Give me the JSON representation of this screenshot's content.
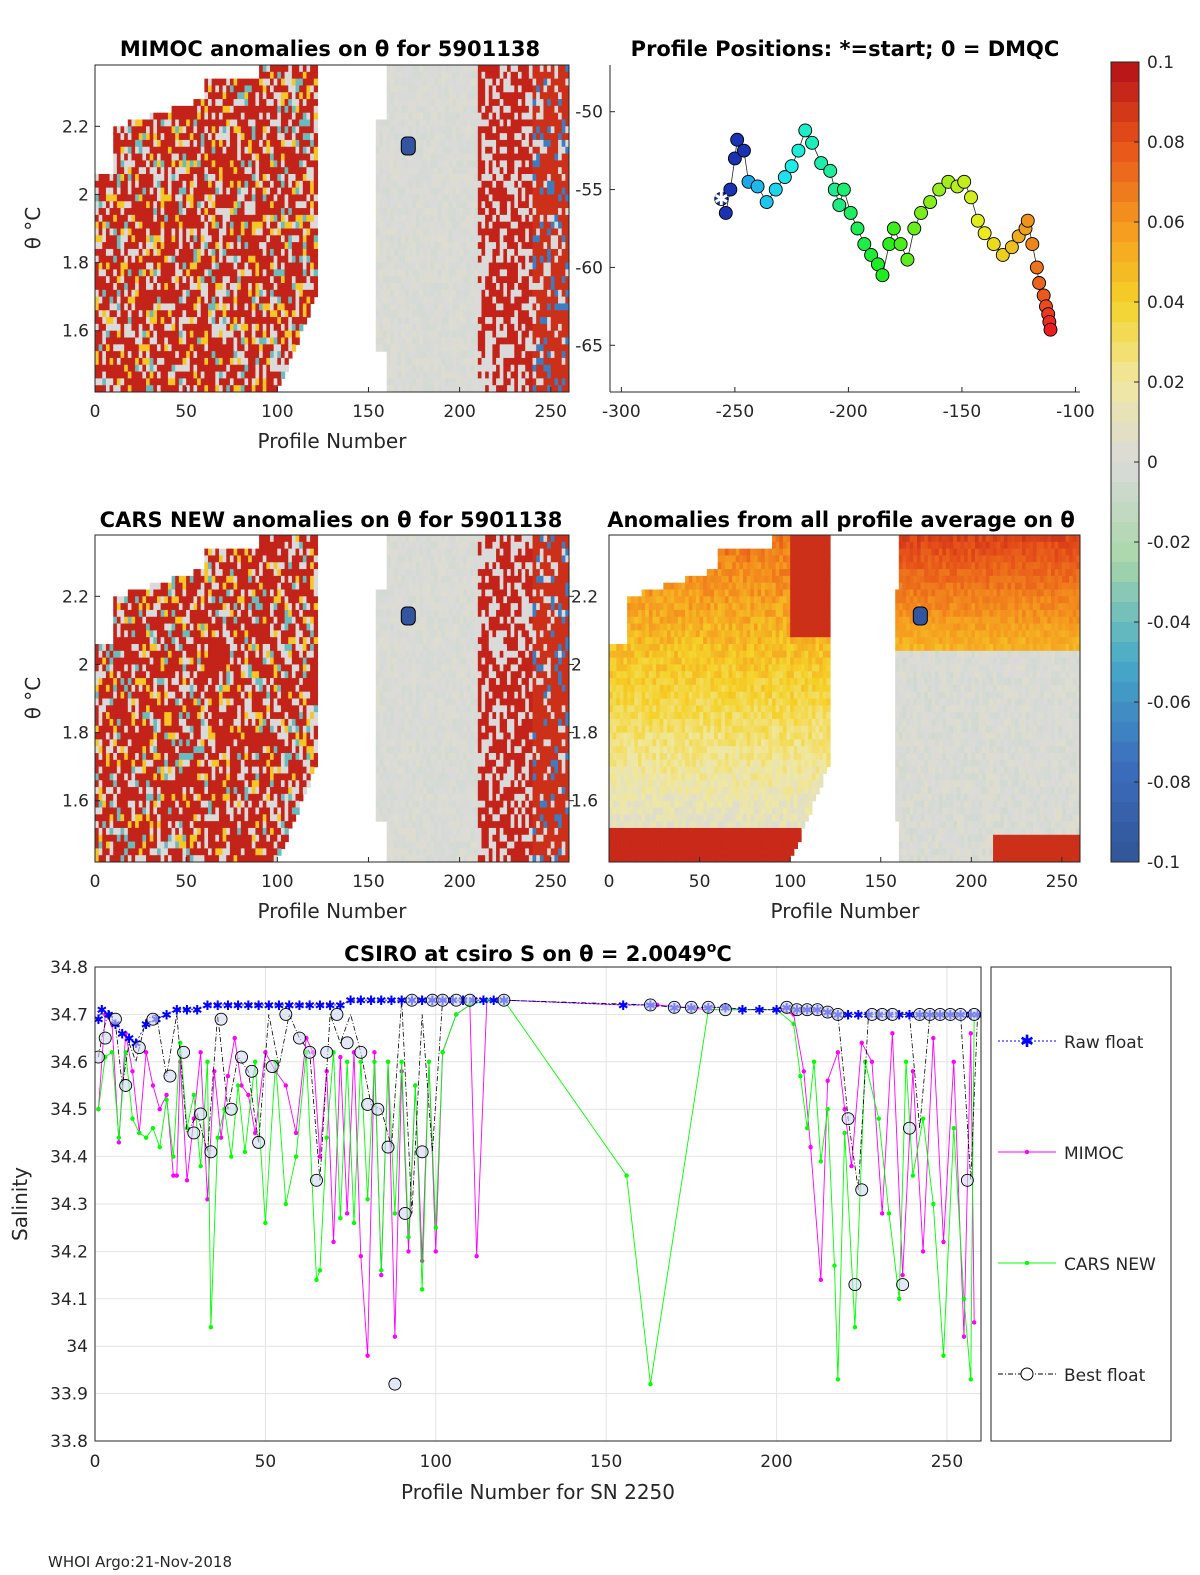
{
  "chart_data": [
    {
      "type": "heatmap",
      "id": "mimoc",
      "title": "MIMOC anomalies on θ  for 5901138",
      "xlabel": "Profile Number",
      "ylabel": "θ °C",
      "xlim": [
        0,
        260
      ],
      "ylim": [
        1.42,
        2.38
      ],
      "xticks": [
        "0",
        "50",
        "100",
        "150",
        "200",
        "250"
      ],
      "yticks": [
        "1.6",
        "1.8",
        "2",
        "2.2"
      ]
    },
    {
      "type": "scatter",
      "id": "positions",
      "title": "Profile Positions: *=start; 0 = DMQC",
      "xlim": [
        -305,
        -98
      ],
      "ylim": [
        -68,
        -47
      ],
      "xticks": [
        "-300",
        "-250",
        "-200",
        "-150",
        "-100"
      ],
      "yticks": [
        "-50",
        "-55",
        "-60",
        "-65"
      ],
      "track": [
        [
          -256,
          -55.6
        ],
        [
          -254,
          -56.5
        ],
        [
          -252,
          -55
        ],
        [
          -250,
          -53
        ],
        [
          -249,
          -51.8
        ],
        [
          -246,
          -52.5
        ],
        [
          -244,
          -54.5
        ],
        [
          -240,
          -54.8
        ],
        [
          -236,
          -55.8
        ],
        [
          -232,
          -55
        ],
        [
          -228,
          -54.2
        ],
        [
          -225,
          -53.5
        ],
        [
          -222,
          -52.5
        ],
        [
          -219,
          -51.2
        ],
        [
          -216,
          -52
        ],
        [
          -212,
          -53.3
        ],
        [
          -208,
          -53.8
        ],
        [
          -206,
          -55
        ],
        [
          -204,
          -56
        ],
        [
          -202,
          -55
        ],
        [
          -199,
          -56.5
        ],
        [
          -196,
          -57.5
        ],
        [
          -193,
          -58.5
        ],
        [
          -190,
          -59.2
        ],
        [
          -187,
          -59.8
        ],
        [
          -185,
          -60.5
        ],
        [
          -182,
          -58.5
        ],
        [
          -180,
          -57.5
        ],
        [
          -177,
          -58.5
        ],
        [
          -174,
          -59.5
        ],
        [
          -171,
          -57.5
        ],
        [
          -168,
          -56.5
        ],
        [
          -164,
          -55.8
        ],
        [
          -160,
          -55
        ],
        [
          -156,
          -54.5
        ],
        [
          -152,
          -54.8
        ],
        [
          -149,
          -54.5
        ],
        [
          -146,
          -55.5
        ],
        [
          -143,
          -57
        ],
        [
          -140,
          -57.8
        ],
        [
          -136,
          -58.5
        ],
        [
          -132,
          -59.2
        ],
        [
          -128,
          -58.7
        ],
        [
          -125,
          -58
        ],
        [
          -122,
          -57.5
        ],
        [
          -121,
          -57
        ],
        [
          -119,
          -58.5
        ],
        [
          -117,
          -60
        ],
        [
          -116,
          -61
        ],
        [
          -114,
          -61.8
        ],
        [
          -113,
          -62.5
        ],
        [
          -112,
          -63
        ],
        [
          -111.5,
          -63.5
        ],
        [
          -111,
          -64
        ]
      ],
      "start": [
        -256,
        -55.6
      ]
    },
    {
      "type": "colorbar",
      "id": "colorbar",
      "range": [
        -0.1,
        0.1
      ],
      "ticks": [
        "0.1",
        "0.08",
        "0.06",
        "0.04",
        "0.02",
        "0",
        "-0.02",
        "-0.04",
        "-0.06",
        "-0.08",
        "-0.1"
      ]
    },
    {
      "type": "heatmap",
      "id": "cars",
      "title": "CARS NEW anomalies on θ for 5901138",
      "xlabel": "Profile Number",
      "ylabel": "θ °C",
      "xlim": [
        0,
        260
      ],
      "ylim": [
        1.42,
        2.38
      ],
      "xticks": [
        "0",
        "50",
        "100",
        "150",
        "200",
        "250"
      ],
      "yticks": [
        "1.6",
        "1.8",
        "2",
        "2.2"
      ]
    },
    {
      "type": "heatmap",
      "id": "avg",
      "title": "Anomalies from all profile average on θ",
      "xlabel": "Profile Number",
      "ylabel": "",
      "xlim": [
        0,
        260
      ],
      "ylim": [
        1.42,
        2.38
      ],
      "xticks": [
        "0",
        "50",
        "100",
        "150",
        "200",
        "250"
      ],
      "yticks": [
        "1.6",
        "1.8",
        "2",
        "2.2"
      ]
    },
    {
      "type": "line",
      "id": "salinity",
      "title": "CSIRO at csiro S on θ = 2.0049",
      "title_sup": "o",
      "title_end": "C",
      "xlabel": "Profile Number for SN 2250",
      "ylabel": "Salinity",
      "xlim": [
        0,
        260
      ],
      "ylim": [
        33.8,
        34.8
      ],
      "xticks": [
        "0",
        "50",
        "100",
        "150",
        "200",
        "250"
      ],
      "yticks": [
        "33.8",
        "33.9",
        "34",
        "34.1",
        "34.2",
        "34.3",
        "34.4",
        "34.5",
        "34.6",
        "34.7",
        "34.8"
      ],
      "legend": [
        "Raw float",
        "MIMOC",
        "CARS NEW",
        "Best float"
      ],
      "series": [
        {
          "name": "MIMOC",
          "color": "#ff00ff",
          "x": [
            1,
            3,
            5,
            7,
            9,
            11,
            13,
            15,
            17,
            19,
            21,
            23,
            24,
            25,
            27,
            29,
            31,
            33,
            35,
            37,
            39,
            41,
            43,
            45,
            47,
            50,
            53,
            56,
            59,
            62,
            64,
            66,
            68,
            70,
            72,
            74,
            76,
            78,
            80,
            82,
            84,
            86,
            88,
            90,
            92,
            94,
            96,
            98,
            100,
            102,
            106,
            110,
            112,
            115,
            120,
            155,
            165,
            180,
            200,
            205,
            208,
            210,
            213,
            215,
            218,
            220,
            222,
            225,
            228,
            231,
            234,
            237,
            240,
            243,
            246,
            249,
            252,
            255,
            257,
            258
          ],
          "y": [
            34.5,
            34.7,
            34.68,
            34.43,
            34.66,
            34.58,
            34.45,
            34.62,
            34.55,
            34.5,
            34.53,
            34.36,
            34.36,
            34.6,
            34.35,
            34.48,
            34.62,
            34.31,
            34.58,
            34.44,
            34.57,
            34.65,
            34.55,
            34.53,
            34.45,
            34.62,
            34.58,
            34.55,
            34.45,
            34.65,
            34.62,
            34.4,
            34.58,
            34.22,
            34.61,
            34.28,
            34.62,
            34.19,
            33.98,
            34.62,
            34.15,
            34.6,
            34.02,
            34.58,
            34.2,
            34.55,
            34.18,
            34.6,
            34.2,
            34.62,
            34.7,
            34.72,
            34.19,
            34.73,
            34.73,
            34.72,
            34.72,
            34.71,
            34.71,
            34.7,
            34.58,
            34.42,
            34.14,
            34.56,
            34.62,
            34.5,
            34.38,
            34.64,
            34.6,
            34.28,
            34.66,
            34.15,
            34.58,
            34.2,
            34.65,
            34.22,
            34.6,
            34.02,
            34.66,
            34.05
          ]
        },
        {
          "name": "CARS NEW",
          "color": "#00ff00",
          "x": [
            1,
            3,
            5,
            7,
            9,
            11,
            13,
            15,
            17,
            19,
            21,
            23,
            25,
            27,
            29,
            31,
            33,
            34,
            36,
            38,
            40,
            42,
            44,
            47,
            50,
            53,
            56,
            59,
            62,
            65,
            66,
            68,
            70,
            72,
            74,
            76,
            78,
            80,
            82,
            84,
            86,
            88,
            90,
            92,
            94,
            96,
            98,
            100,
            102,
            106,
            110,
            115,
            120,
            156,
            163,
            180,
            200,
            205,
            207,
            209,
            211,
            213,
            215,
            217,
            218,
            220,
            223,
            226,
            230,
            233,
            236,
            238,
            240,
            243,
            246,
            249,
            252,
            255,
            257,
            258
          ],
          "y": [
            34.5,
            34.61,
            34.62,
            34.44,
            34.62,
            34.48,
            34.45,
            34.44,
            34.46,
            34.42,
            34.52,
            34.4,
            34.64,
            34.46,
            34.53,
            34.38,
            34.6,
            34.04,
            34.44,
            34.5,
            34.4,
            34.55,
            34.41,
            34.6,
            34.26,
            34.6,
            34.3,
            34.4,
            34.62,
            34.14,
            34.16,
            34.44,
            34.62,
            34.27,
            34.6,
            34.26,
            34.6,
            34.31,
            34.6,
            34.16,
            34.6,
            34.28,
            34.6,
            34.23,
            34.55,
            34.12,
            34.6,
            34.25,
            34.62,
            34.7,
            34.72,
            34.73,
            34.73,
            34.36,
            33.92,
            34.71,
            34.71,
            34.68,
            34.57,
            34.46,
            34.6,
            34.39,
            34.5,
            34.17,
            33.93,
            34.45,
            34.04,
            34.6,
            34.48,
            34.28,
            34.1,
            34.6,
            34.36,
            34.48,
            34.3,
            33.98,
            34.46,
            34.1,
            33.93,
            34.7
          ]
        },
        {
          "name": "Raw float",
          "color": "#0000ff",
          "x": [
            1,
            2,
            4,
            6,
            8,
            10,
            12,
            15,
            18,
            21,
            24,
            27,
            30,
            33,
            36,
            39,
            42,
            45,
            48,
            51,
            54,
            57,
            60,
            63,
            66,
            69,
            72,
            75,
            78,
            81,
            84,
            87,
            90,
            93,
            96,
            99,
            102,
            105,
            108,
            111,
            114,
            117,
            120,
            155,
            163,
            170,
            175,
            180,
            185,
            190,
            195,
            200,
            203,
            206,
            209,
            212,
            215,
            218,
            221,
            224,
            227,
            230,
            233,
            236,
            239,
            242,
            245,
            248,
            251,
            254,
            257,
            259
          ],
          "y": [
            34.69,
            34.71,
            34.7,
            34.68,
            34.66,
            34.65,
            34.64,
            34.68,
            34.69,
            34.7,
            34.71,
            34.71,
            34.71,
            34.72,
            34.72,
            34.72,
            34.72,
            34.72,
            34.72,
            34.72,
            34.72,
            34.72,
            34.72,
            34.72,
            34.72,
            34.72,
            34.72,
            34.73,
            34.73,
            34.73,
            34.73,
            34.73,
            34.73,
            34.73,
            34.73,
            34.73,
            34.73,
            34.73,
            34.73,
            34.73,
            34.73,
            34.73,
            34.73,
            34.72,
            34.72,
            34.715,
            34.715,
            34.715,
            34.715,
            34.71,
            34.71,
            34.71,
            34.715,
            34.71,
            34.71,
            34.71,
            34.705,
            34.7,
            34.7,
            34.7,
            34.7,
            34.7,
            34.7,
            34.7,
            34.7,
            34.7,
            34.7,
            34.7,
            34.7,
            34.7,
            34.7,
            34.7
          ]
        },
        {
          "name": "Best float",
          "color": "#000000",
          "x": [
            1,
            2,
            4,
            6,
            8,
            10,
            12,
            15,
            18,
            21,
            24,
            27,
            30,
            33,
            36,
            39,
            42,
            45,
            48,
            51,
            54,
            57,
            60,
            63,
            66,
            69,
            72,
            75,
            78,
            81,
            84,
            87,
            90,
            93,
            96,
            99,
            102,
            105,
            108,
            111,
            114,
            117,
            120,
            163,
            170,
            175,
            180,
            185,
            190,
            200,
            203,
            206,
            209,
            212,
            215,
            218,
            221,
            224,
            227,
            230,
            233,
            236,
            239,
            242,
            245,
            248,
            251,
            254,
            257,
            259
          ],
          "y": [
            34.61,
            34.65,
            34.71,
            34.68,
            34.55,
            34.64,
            34.6,
            34.69,
            34.7,
            34.57,
            34.7,
            34.45,
            34.49,
            34.41,
            34.7,
            34.5,
            34.61,
            34.58,
            34.43,
            34.7,
            34.59,
            34.7,
            34.65,
            34.62,
            34.35,
            34.7,
            34.64,
            34.7,
            34.62,
            34.51,
            34.5,
            34.42,
            34.73,
            34.28,
            34.7,
            34.41,
            34.73,
            34.73,
            34.73,
            34.73,
            34.73,
            34.73,
            34.73,
            34.72,
            34.715,
            34.715,
            34.715,
            34.715,
            34.71,
            34.71,
            34.715,
            34.71,
            34.71,
            34.71,
            34.705,
            34.7,
            34.48,
            34.33,
            34.7,
            34.7,
            34.7,
            34.7,
            34.7,
            34.46,
            34.7,
            34.7,
            34.7,
            34.7,
            34.35,
            34.7
          ]
        }
      ],
      "best_float_markers_x": [
        1,
        3,
        6,
        9,
        13,
        17,
        22,
        26,
        29,
        31,
        34,
        37,
        40,
        43,
        46,
        48,
        52,
        56,
        60,
        63,
        65,
        68,
        71,
        74,
        78,
        80,
        83,
        86,
        88,
        91,
        93,
        96,
        99,
        102,
        106,
        110,
        120,
        163,
        170,
        175,
        180,
        185,
        203,
        206,
        209,
        212,
        215,
        218,
        221,
        223,
        225,
        228,
        231,
        234,
        237,
        239,
        242,
        245,
        248,
        251,
        254,
        256,
        258
      ],
      "best_float_markers_y": [
        34.61,
        34.65,
        34.69,
        34.55,
        34.63,
        34.69,
        34.57,
        34.62,
        34.45,
        34.49,
        34.41,
        34.69,
        34.5,
        34.61,
        34.58,
        34.43,
        34.59,
        34.7,
        34.65,
        34.62,
        34.35,
        34.62,
        34.7,
        34.64,
        34.62,
        34.51,
        34.5,
        34.42,
        33.92,
        34.28,
        34.73,
        34.41,
        34.73,
        34.73,
        34.73,
        34.73,
        34.73,
        34.72,
        34.715,
        34.715,
        34.715,
        34.71,
        34.715,
        34.71,
        34.71,
        34.71,
        34.705,
        34.7,
        34.48,
        34.13,
        34.33,
        34.7,
        34.7,
        34.7,
        34.13,
        34.46,
        34.7,
        34.7,
        34.7,
        34.7,
        34.7,
        34.35,
        34.7
      ]
    }
  ],
  "footer": "WHOI Argo:21-Nov-2018"
}
